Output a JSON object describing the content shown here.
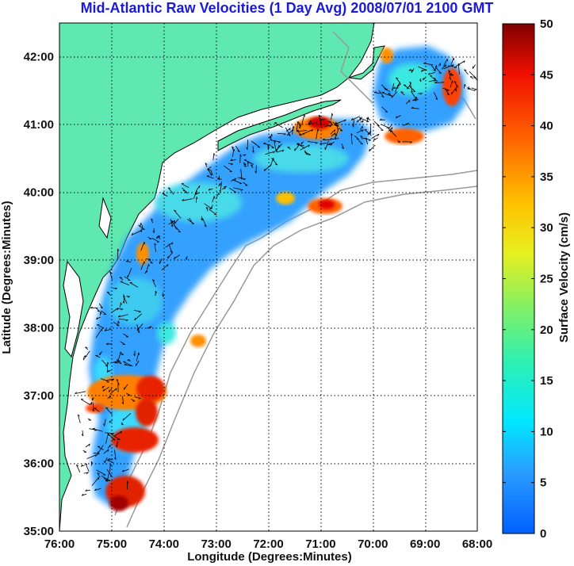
{
  "title": "Mid-Atlantic Raw Velocities (1 Day Avg) 2008/07/01 2100 GMT",
  "chart_data": {
    "type": "heatmap",
    "title": "Mid-Atlantic Raw Velocities (1 Day Avg) 2008/07/01 2100 GMT",
    "xlabel": "Longitude (Degrees:Minutes)",
    "ylabel": "Latitude (Degrees:Minutes)",
    "colorbar_label": "Surface Velocity (cm/s)",
    "x_ticks": [
      "76:00",
      "75:00",
      "74:00",
      "73:00",
      "72:00",
      "71:00",
      "70:00",
      "69:00",
      "68:00"
    ],
    "y_ticks": [
      "42:00",
      "41:00",
      "40:00",
      "39:00",
      "38:00",
      "37:00",
      "36:00",
      "35:00"
    ],
    "xlim": [
      -76,
      -68
    ],
    "ylim": [
      35,
      42.5
    ],
    "colorbar_ticks": [
      50,
      45,
      40,
      35,
      30,
      25,
      20,
      15,
      10,
      5,
      0
    ],
    "colorbar_range": [
      0,
      50
    ],
    "grid": true,
    "colors": {
      "land": "#5fe8b0",
      "title": "#1a1ad8",
      "coastline": "#000000",
      "bathymetry": "#999999"
    }
  }
}
